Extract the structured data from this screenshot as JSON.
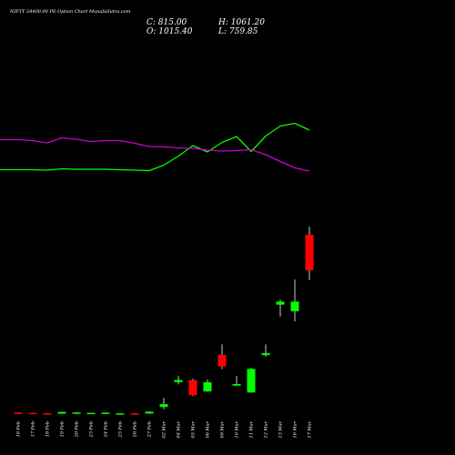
{
  "chart_data": {
    "type": "candlestick",
    "title": "NIFTY 24400.00 PE Option Chart MunafaSutra.com",
    "ohlc_readout": {
      "close": "C: 815.00",
      "high": "H: 1061.20",
      "open": "O: 1015.40",
      "low": "L: 759.85"
    },
    "categories": [
      "16 Feb",
      "17 Feb",
      "18 Feb",
      "19 Feb",
      "20 Feb",
      "23 Feb",
      "24 Feb",
      "25 Feb",
      "26 Feb",
      "27 Feb",
      "02 Mar",
      "04 Mar",
      "05 Mar",
      "06 Mar",
      "09 Mar",
      "10 Mar",
      "11 Mar",
      "12 Mar",
      "13 Mar",
      "16 Mar",
      "17 Mar"
    ],
    "candles": [
      {
        "open": 8,
        "high": 9,
        "low": 6,
        "close": 7
      },
      {
        "open": 7,
        "high": 8,
        "low": 5,
        "close": 5
      },
      {
        "open": 5,
        "high": 6,
        "low": 2,
        "close": 3
      },
      {
        "open": 2,
        "high": 14,
        "low": 1,
        "close": 12
      },
      {
        "open": 8,
        "high": 10,
        "low": 7,
        "close": 9
      },
      {
        "open": 5,
        "high": 8,
        "low": 4,
        "close": 7
      },
      {
        "open": 6,
        "high": 9,
        "low": 5,
        "close": 8
      },
      {
        "open": 3,
        "high": 5,
        "low": 2,
        "close": 4
      },
      {
        "open": 4,
        "high": 5,
        "low": 2,
        "close": 2
      },
      {
        "open": 3,
        "high": 15,
        "low": 2,
        "close": 14
      },
      {
        "open": 40,
        "high": 92,
        "low": 28,
        "close": 56
      },
      {
        "open": 180,
        "high": 215,
        "low": 168,
        "close": 193
      },
      {
        "open": 192,
        "high": 200,
        "low": 102,
        "close": 108
      },
      {
        "open": 128,
        "high": 196,
        "low": 127,
        "close": 180
      },
      {
        "open": 335,
        "high": 395,
        "low": 255,
        "close": 270
      },
      {
        "open": 161,
        "high": 215,
        "low": 160,
        "close": 170
      },
      {
        "open": 122,
        "high": 262,
        "low": 121,
        "close": 256
      },
      {
        "open": 334,
        "high": 395,
        "low": 325,
        "close": 345
      },
      {
        "open": 620,
        "high": 648,
        "low": 552,
        "close": 637
      },
      {
        "open": 582,
        "high": 762,
        "low": 525,
        "close": 637
      },
      {
        "open": 1015.4,
        "high": 1061.2,
        "low": 759.85,
        "close": 815
      }
    ],
    "series": [
      {
        "type": "line",
        "color": "#00ff00",
        "values": [
          168,
          168,
          167,
          170,
          169,
          169,
          169,
          168,
          167,
          166,
          178,
          198,
          221,
          207,
          228,
          241,
          208,
          242,
          264,
          270,
          255
        ]
      },
      {
        "type": "line",
        "color": "#cc00cc",
        "values": [
          234,
          232,
          227,
          238,
          235,
          230,
          232,
          232,
          226,
          219,
          218,
          216,
          215,
          211,
          209,
          210,
          212,
          201,
          186,
          172,
          165
        ]
      }
    ],
    "xlabel": "",
    "ylabel": "",
    "grid": false,
    "legend": "none",
    "colors": {
      "background": "#000000",
      "up": "#00ff00",
      "down": "#ff0000",
      "wick": "#ffffff",
      "text": "#ffffff"
    }
  }
}
